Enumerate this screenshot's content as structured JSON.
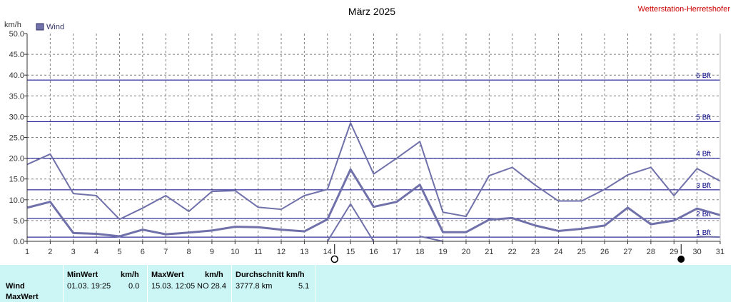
{
  "header": {
    "title": "März 2025",
    "station": "Wetterstation-Herretshofer",
    "unit": "km/h"
  },
  "chart_data": {
    "type": "line",
    "title": "März 2025",
    "ylabel": "km/h",
    "ylim": [
      0,
      50
    ],
    "yticks": [
      "0.0",
      "5.0",
      "10.0",
      "15.0",
      "20.0",
      "25.0",
      "30.0",
      "35.0",
      "40.0",
      "45.0",
      "50.0"
    ],
    "categories": [
      "1",
      "2",
      "3",
      "4",
      "5",
      "6",
      "7",
      "8",
      "9",
      "10",
      "11",
      "12",
      "13",
      "14",
      "15",
      "16",
      "17",
      "18",
      "19",
      "20",
      "21",
      "22",
      "23",
      "24",
      "25",
      "26",
      "27",
      "28",
      "29",
      "30",
      "31"
    ],
    "legend": [
      "Wind"
    ],
    "legend_position": "top-left",
    "grid": true,
    "series": [
      {
        "name": "Wind",
        "role": "max",
        "values": [
          18.5,
          21,
          11.5,
          11,
          5.3,
          8,
          11,
          7.2,
          12,
          12.2,
          8.2,
          7.7,
          11,
          12.5,
          28.5,
          16.2,
          20,
          24,
          7,
          6,
          15.8,
          17.8,
          13.5,
          9.7,
          9.7,
          12.5,
          16,
          17.8,
          11,
          17.5,
          14.5
        ]
      },
      {
        "name": "Wind",
        "role": "avg",
        "values": [
          8.1,
          9.5,
          2,
          1.8,
          1.2,
          2.8,
          1.7,
          2.1,
          2.6,
          3.5,
          3.4,
          2.8,
          2.4,
          5.3,
          17.3,
          8.3,
          9.5,
          13.6,
          2.2,
          2.2,
          5.2,
          5.6,
          3.8,
          2.5,
          3,
          3.8,
          8.1,
          4.1,
          5,
          7.9,
          6.3
        ]
      },
      {
        "name": "Wind",
        "role": "min",
        "values": [
          null,
          null,
          null,
          null,
          null,
          null,
          null,
          null,
          null,
          null,
          null,
          null,
          null,
          0,
          9,
          0,
          null,
          1.2,
          0,
          null,
          null,
          null,
          null,
          null,
          null,
          null,
          null,
          null,
          null,
          1.2,
          1
        ]
      }
    ],
    "reference_lines": [
      {
        "label": "1 Bft",
        "value": 1
      },
      {
        "label": "2 Bft",
        "value": 5.5
      },
      {
        "label": "3 Bft",
        "value": 12.4
      },
      {
        "label": "4 Bft",
        "value": 20
      },
      {
        "label": "5 Bft",
        "value": 28.8
      },
      {
        "label": "6 Bft",
        "value": 38.8
      }
    ],
    "moon_phases": [
      {
        "day": "14",
        "phase": "full"
      },
      {
        "day": "29",
        "phase": "new"
      }
    ],
    "colors": {
      "series": "#7070aa",
      "reference": "#000080",
      "grid": "#808080",
      "station": "#cc0000"
    }
  },
  "stats": {
    "row_labels": [
      "Wind",
      "MaxWert"
    ],
    "min_header": "MinWert",
    "min_unit": "km/h",
    "min_datetime": "01.03.  19:25",
    "min_value": "0.0",
    "max_header": "MaxWert",
    "max_unit": "km/h",
    "max_datetime": "15.03.  12:05",
    "max_dir_value": "NO 28.4",
    "avg_header": "Durchschnitt km/h",
    "avg_distance": "3777.8 km",
    "avg_value": "5.1"
  }
}
